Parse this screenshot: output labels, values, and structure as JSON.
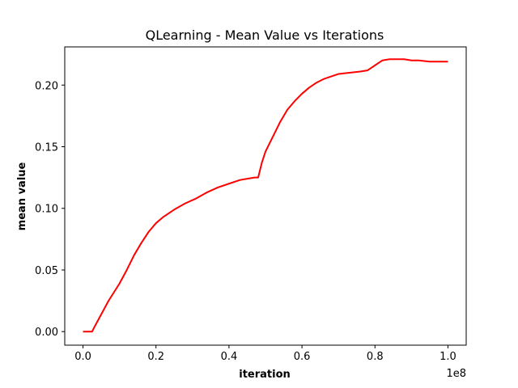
{
  "chart_data": {
    "type": "line",
    "title": "QLearning - Mean Value vs Iterations",
    "xlabel": "iteration",
    "ylabel": "mean value",
    "x_offset_label": "1e8",
    "xlim": [
      -0.05,
      1.05
    ],
    "ylim": [
      -0.011,
      0.231
    ],
    "xticks": [
      {
        "value": 0.0,
        "label": "0.0"
      },
      {
        "value": 0.2,
        "label": "0.2"
      },
      {
        "value": 0.4,
        "label": "0.4"
      },
      {
        "value": 0.6,
        "label": "0.6"
      },
      {
        "value": 0.8,
        "label": "0.8"
      },
      {
        "value": 1.0,
        "label": "1.0"
      }
    ],
    "yticks": [
      {
        "value": 0.0,
        "label": "0.00"
      },
      {
        "value": 0.05,
        "label": "0.05"
      },
      {
        "value": 0.1,
        "label": "0.10"
      },
      {
        "value": 0.15,
        "label": "0.15"
      },
      {
        "value": 0.2,
        "label": "0.20"
      }
    ],
    "grid": false,
    "series": [
      {
        "color": "#ff0000",
        "x": [
          0.0,
          0.025,
          0.03,
          0.05,
          0.07,
          0.1,
          0.12,
          0.14,
          0.16,
          0.18,
          0.2,
          0.22,
          0.25,
          0.28,
          0.31,
          0.34,
          0.37,
          0.4,
          0.43,
          0.45,
          0.47,
          0.48,
          0.49,
          0.5,
          0.52,
          0.54,
          0.56,
          0.58,
          0.6,
          0.62,
          0.64,
          0.66,
          0.68,
          0.7,
          0.73,
          0.76,
          0.78,
          0.8,
          0.82,
          0.84,
          0.86,
          0.88,
          0.9,
          0.92,
          0.95,
          0.98,
          1.0
        ],
        "y": [
          0.0,
          0.0,
          0.003,
          0.014,
          0.025,
          0.039,
          0.05,
          0.062,
          0.072,
          0.081,
          0.088,
          0.093,
          0.099,
          0.104,
          0.108,
          0.113,
          0.117,
          0.12,
          0.123,
          0.124,
          0.125,
          0.125,
          0.137,
          0.146,
          0.158,
          0.17,
          0.18,
          0.187,
          0.193,
          0.198,
          0.202,
          0.205,
          0.207,
          0.209,
          0.21,
          0.211,
          0.212,
          0.216,
          0.22,
          0.221,
          0.221,
          0.221,
          0.22,
          0.22,
          0.219,
          0.219,
          0.219
        ]
      }
    ]
  }
}
